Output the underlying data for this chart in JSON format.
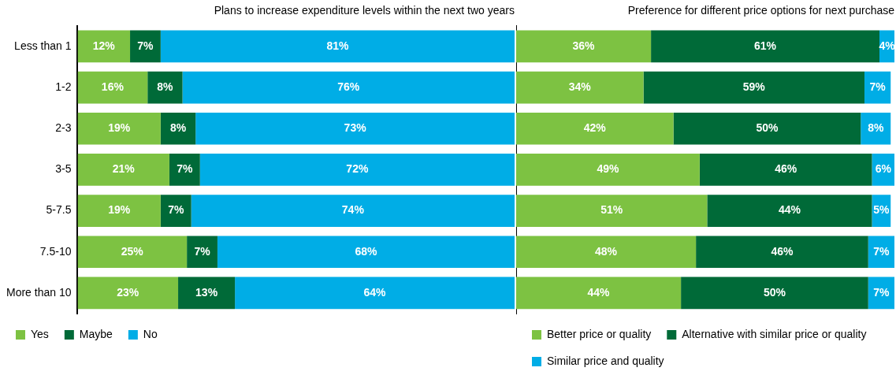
{
  "chart_data": [
    {
      "type": "bar",
      "orientation": "horizontal",
      "stacked": true,
      "title": "Plans to increase expenditure levels within the next two years",
      "categories": [
        "Less than 1",
        "1-2",
        "2-3",
        "3-5",
        "5-7.5",
        "7.5-10",
        "More than 10"
      ],
      "legend": "bottom",
      "tick_labels": "y",
      "series": [
        {
          "name": "Yes",
          "color": "#7dc242",
          "values": [
            12,
            16,
            19,
            21,
            19,
            25,
            23
          ],
          "value_labels": [
            "12%",
            "16%",
            "19%",
            "21%",
            "19%",
            "25%",
            "23%"
          ]
        },
        {
          "name": "Maybe",
          "color": "#006a38",
          "values": [
            7,
            8,
            8,
            7,
            7,
            7,
            13
          ],
          "value_labels": [
            "7%",
            "8%",
            "8%",
            "7%",
            "7%",
            "7%",
            "13%"
          ]
        },
        {
          "name": "No",
          "color": "#00ade6",
          "values": [
            81,
            76,
            73,
            72,
            74,
            68,
            64
          ],
          "value_labels": [
            "81%",
            "76%",
            "73%",
            "72%",
            "74%",
            "68%",
            "64%"
          ]
        }
      ]
    },
    {
      "type": "bar",
      "orientation": "horizontal",
      "stacked": true,
      "title": "Preference for different price options for next purchase",
      "categories": [
        null,
        null,
        null,
        null,
        null,
        null,
        null
      ],
      "legend": "bottom",
      "tick_labels": false,
      "series": [
        {
          "name": "Better price or quality",
          "color": "#7dc242",
          "values": [
            36,
            34,
            42,
            49,
            51,
            48,
            44
          ],
          "value_labels": [
            "36%",
            "34%",
            "42%",
            "49%",
            "51%",
            "48%",
            "44%"
          ]
        },
        {
          "name": "Alternative with similar price or quality",
          "color": "#006a38",
          "values": [
            61,
            59,
            50,
            46,
            44,
            46,
            50
          ],
          "value_labels": [
            "61%",
            "59%",
            "50%",
            "46%",
            "44%",
            "46%",
            "50%"
          ]
        },
        {
          "name": "Similar price and quality",
          "color": "#00ade6",
          "values": [
            4,
            7,
            8,
            6,
            5,
            7,
            7
          ],
          "value_labels": [
            "4%",
            "7%",
            "8%",
            "6%",
            "5%",
            "7%",
            "7%"
          ]
        }
      ]
    }
  ]
}
